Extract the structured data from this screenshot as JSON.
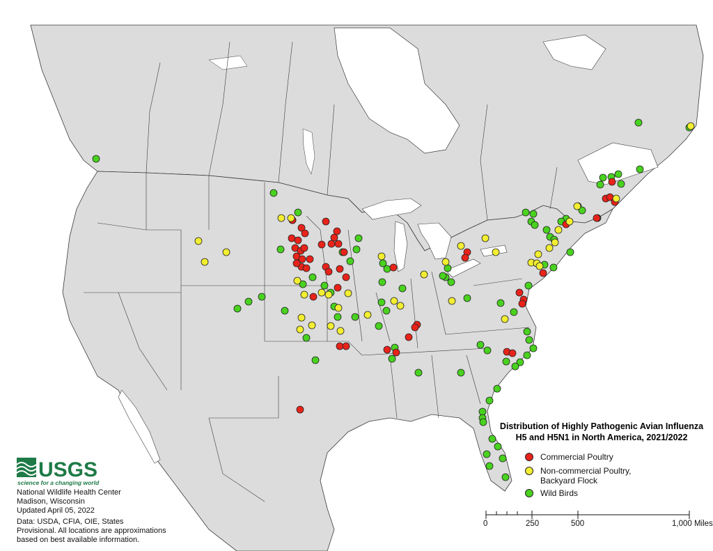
{
  "legend": {
    "title_line1": "Distribution of Highly Pathogenic Avian Influenza",
    "title_line2": "H5 and H5N1 in North America, 2021/2022",
    "items": [
      {
        "label": "Commercial Poultry",
        "color": "#e8231a"
      },
      {
        "label": "Non-commercial Poultry,",
        "label2": "Backyard Flock",
        "color": "#f2ee31"
      },
      {
        "label": "Wild Birds",
        "color": "#49d21f"
      }
    ]
  },
  "scale": {
    "labels": [
      "0",
      "250",
      "500",
      "1,000 Miles"
    ],
    "values_miles": [
      0,
      250,
      500,
      1000
    ]
  },
  "credits": {
    "logo_text": "USGS",
    "logo_tagline": "science for a changing world",
    "lines": [
      "National Wildlife Health Center",
      "Madison, Wisconsin",
      "Updated April 05, 2022",
      "Data: USDA, CFIA, OIE, States",
      "Provisional. All locations are approximations",
      "based on best available information."
    ]
  },
  "colors": {
    "land": "#dcdcdc",
    "water": "#ffffff",
    "border": "#3a3a3a",
    "usgs_green": "#1e7a46"
  }
}
